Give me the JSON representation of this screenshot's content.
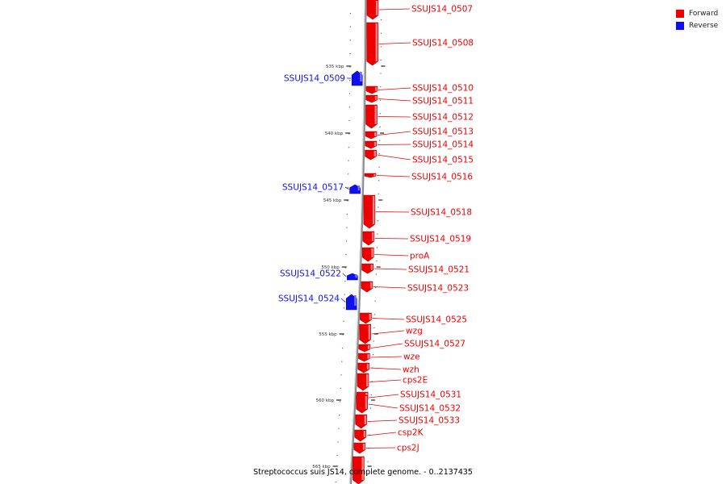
{
  "caption": "Streptococcus suis JS14, complete genome. - 0..2137435",
  "legend": {
    "forward_label": "Forward",
    "reverse_label": "Reverse",
    "forward_color": "#ee0000",
    "reverse_color": "#1010ee"
  },
  "scale_ticks": [
    "535 kbp",
    "540 kbp",
    "545 kbp",
    "550 kbp",
    "555 kbp",
    "560 kbp",
    "565 kbp"
  ],
  "genes": [
    {
      "label": "SSUJS14_0507",
      "strand": "forward"
    },
    {
      "label": "SSUJS14_0508",
      "strand": "forward"
    },
    {
      "label": "SSUJS14_0509",
      "strand": "reverse"
    },
    {
      "label": "SSUJS14_0510",
      "strand": "forward"
    },
    {
      "label": "SSUJS14_0511",
      "strand": "forward"
    },
    {
      "label": "SSUJS14_0512",
      "strand": "forward"
    },
    {
      "label": "SSUJS14_0513",
      "strand": "forward"
    },
    {
      "label": "SSUJS14_0514",
      "strand": "forward"
    },
    {
      "label": "SSUJS14_0515",
      "strand": "forward"
    },
    {
      "label": "SSUJS14_0516",
      "strand": "forward"
    },
    {
      "label": "SSUJS14_0517",
      "strand": "reverse"
    },
    {
      "label": "SSUJS14_0518",
      "strand": "forward"
    },
    {
      "label": "SSUJS14_0519",
      "strand": "forward"
    },
    {
      "label": "proA",
      "strand": "forward"
    },
    {
      "label": "SSUJS14_0521",
      "strand": "forward"
    },
    {
      "label": "SSUJS14_0522",
      "strand": "reverse"
    },
    {
      "label": "SSUJS14_0523",
      "strand": "forward"
    },
    {
      "label": "SSUJS14_0524",
      "strand": "reverse"
    },
    {
      "label": "SSUJS14_0525",
      "strand": "forward"
    },
    {
      "label": "wzg",
      "strand": "forward"
    },
    {
      "label": "SSUJS14_0527",
      "strand": "forward"
    },
    {
      "label": "wze",
      "strand": "forward"
    },
    {
      "label": "wzh",
      "strand": "forward"
    },
    {
      "label": "cps2E",
      "strand": "forward"
    },
    {
      "label": "SSUJS14_0531",
      "strand": "forward"
    },
    {
      "label": "SSUJS14_0532",
      "strand": "forward"
    },
    {
      "label": "SSUJS14_0533",
      "strand": "forward"
    },
    {
      "label": "csp2K",
      "strand": "forward"
    },
    {
      "label": "cps2J",
      "strand": "forward"
    },
    {
      "label": "",
      "strand": "forward"
    }
  ]
}
